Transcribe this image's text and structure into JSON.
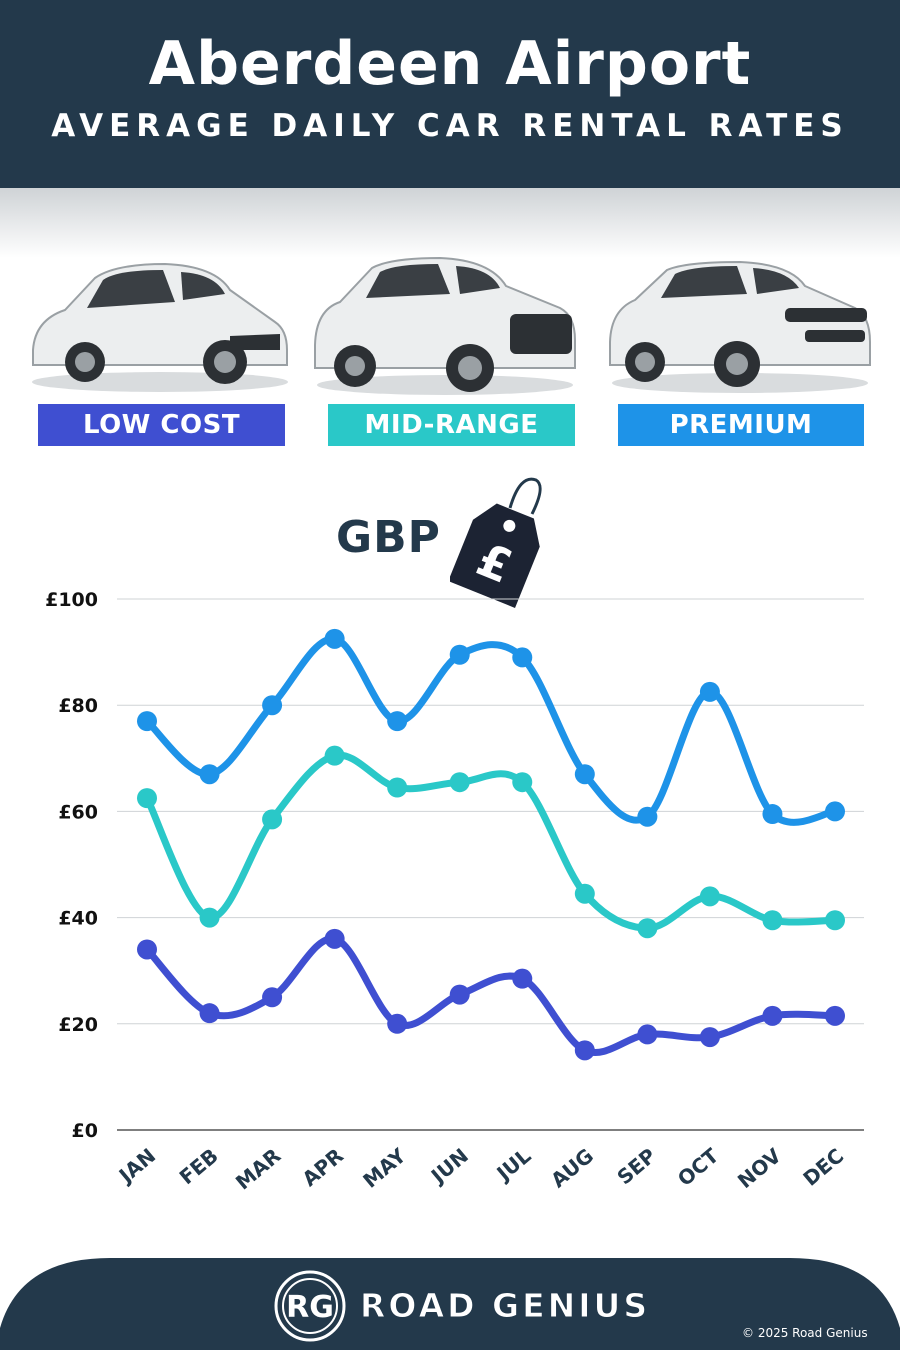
{
  "header": {
    "title": "Aberdeen Airport",
    "subtitle": "AVERAGE DAILY CAR RENTAL RATES"
  },
  "categories": [
    {
      "label": "LOW COST",
      "color": "#3f4fd1"
    },
    {
      "label": "MID-RANGE",
      "color": "#2ac8c8"
    },
    {
      "label": "PREMIUM",
      "color": "#1e93e8"
    }
  ],
  "currency": {
    "label": "GBP",
    "symbol": "£"
  },
  "chart_data": {
    "type": "line",
    "categories": [
      "JAN",
      "FEB",
      "MAR",
      "APR",
      "MAY",
      "JUN",
      "JUL",
      "AUG",
      "SEP",
      "OCT",
      "NOV",
      "DEC"
    ],
    "y_ticks": [
      "£0",
      "£20",
      "£40",
      "£60",
      "£80",
      "£100"
    ],
    "ylim": [
      0,
      100
    ],
    "grid": true,
    "series": [
      {
        "name": "PREMIUM",
        "color": "#1e93e8",
        "values": [
          77,
          67,
          80,
          92.5,
          77,
          89.5,
          89,
          67,
          59,
          82.5,
          59.5,
          60
        ]
      },
      {
        "name": "MID-RANGE",
        "color": "#2ac8c8",
        "values": [
          62.5,
          40,
          58.5,
          70.5,
          64.5,
          65.5,
          65.5,
          44.5,
          38,
          44,
          39.5,
          39.5
        ]
      },
      {
        "name": "LOW COST",
        "color": "#3f4fd1",
        "values": [
          34,
          22,
          25,
          36,
          20,
          25.5,
          28.5,
          15,
          18,
          17.5,
          21.5,
          21.5
        ]
      }
    ]
  },
  "footer": {
    "brand": "ROAD GENIUS",
    "logo_text": "RG",
    "copyright": "© 2025 Road Genius"
  }
}
